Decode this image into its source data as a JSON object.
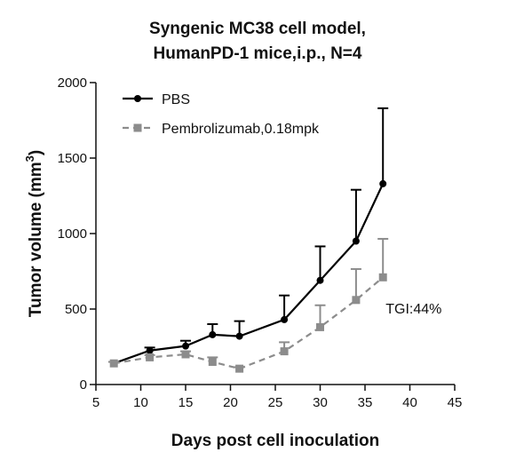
{
  "chart_data": {
    "type": "line",
    "title_lines": [
      "Syngenic MC38 cell model,",
      "HumanPD-1 mice,i.p., N=4"
    ],
    "xlabel": "Days post cell inoculation",
    "ylabel_main": "Tumor volume (mm",
    "ylabel_sup": "3",
    "ylabel_end": ")",
    "xlim": [
      5,
      45
    ],
    "ylim": [
      0,
      2000
    ],
    "xticks": [
      5,
      10,
      15,
      20,
      25,
      30,
      35,
      40,
      45
    ],
    "yticks": [
      0,
      500,
      1000,
      1500,
      2000
    ],
    "legend_position": "top-left",
    "series": [
      {
        "name": "PBS",
        "color": "#000000",
        "marker": "circle",
        "line": "solid",
        "x": [
          7,
          11,
          15,
          18,
          21,
          26,
          30,
          34,
          37
        ],
        "y": [
          140,
          225,
          255,
          330,
          320,
          430,
          690,
          950,
          1330
        ],
        "err": [
          10,
          20,
          35,
          70,
          100,
          160,
          225,
          340,
          500
        ]
      },
      {
        "name": "Pembrolizumab,0.18mpk",
        "color": "#8c8c8c",
        "marker": "square",
        "line": "dashed",
        "x": [
          7,
          11,
          15,
          18,
          21,
          26,
          30,
          34,
          37
        ],
        "y": [
          140,
          180,
          200,
          150,
          105,
          220,
          380,
          560,
          710
        ],
        "err": [
          10,
          15,
          20,
          30,
          10,
          60,
          145,
          205,
          255
        ]
      }
    ],
    "annotations": [
      {
        "text": "TGI:44%",
        "x": 37.3,
        "y": 470
      }
    ]
  }
}
